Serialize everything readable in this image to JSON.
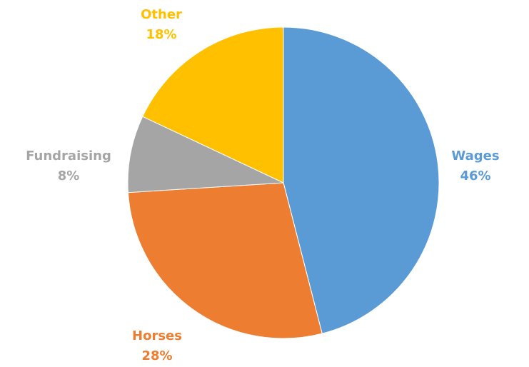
{
  "chart_data": {
    "type": "pie",
    "title": "",
    "slices": [
      {
        "label": "Wages",
        "value": 46,
        "value_label": "46%",
        "color": "#5B9BD5"
      },
      {
        "label": "Horses",
        "value": 28,
        "value_label": "28%",
        "color": "#ED7D31"
      },
      {
        "label": "Fundraising",
        "value": 8,
        "value_label": "8%",
        "color": "#A5A5A5"
      },
      {
        "label": "Other",
        "value": 18,
        "value_label": "18%",
        "color": "#FFC000"
      }
    ],
    "start_angle_deg": 0,
    "direction": "clockwise",
    "legend": "none",
    "data_labels": "outside, category name and percentage"
  }
}
